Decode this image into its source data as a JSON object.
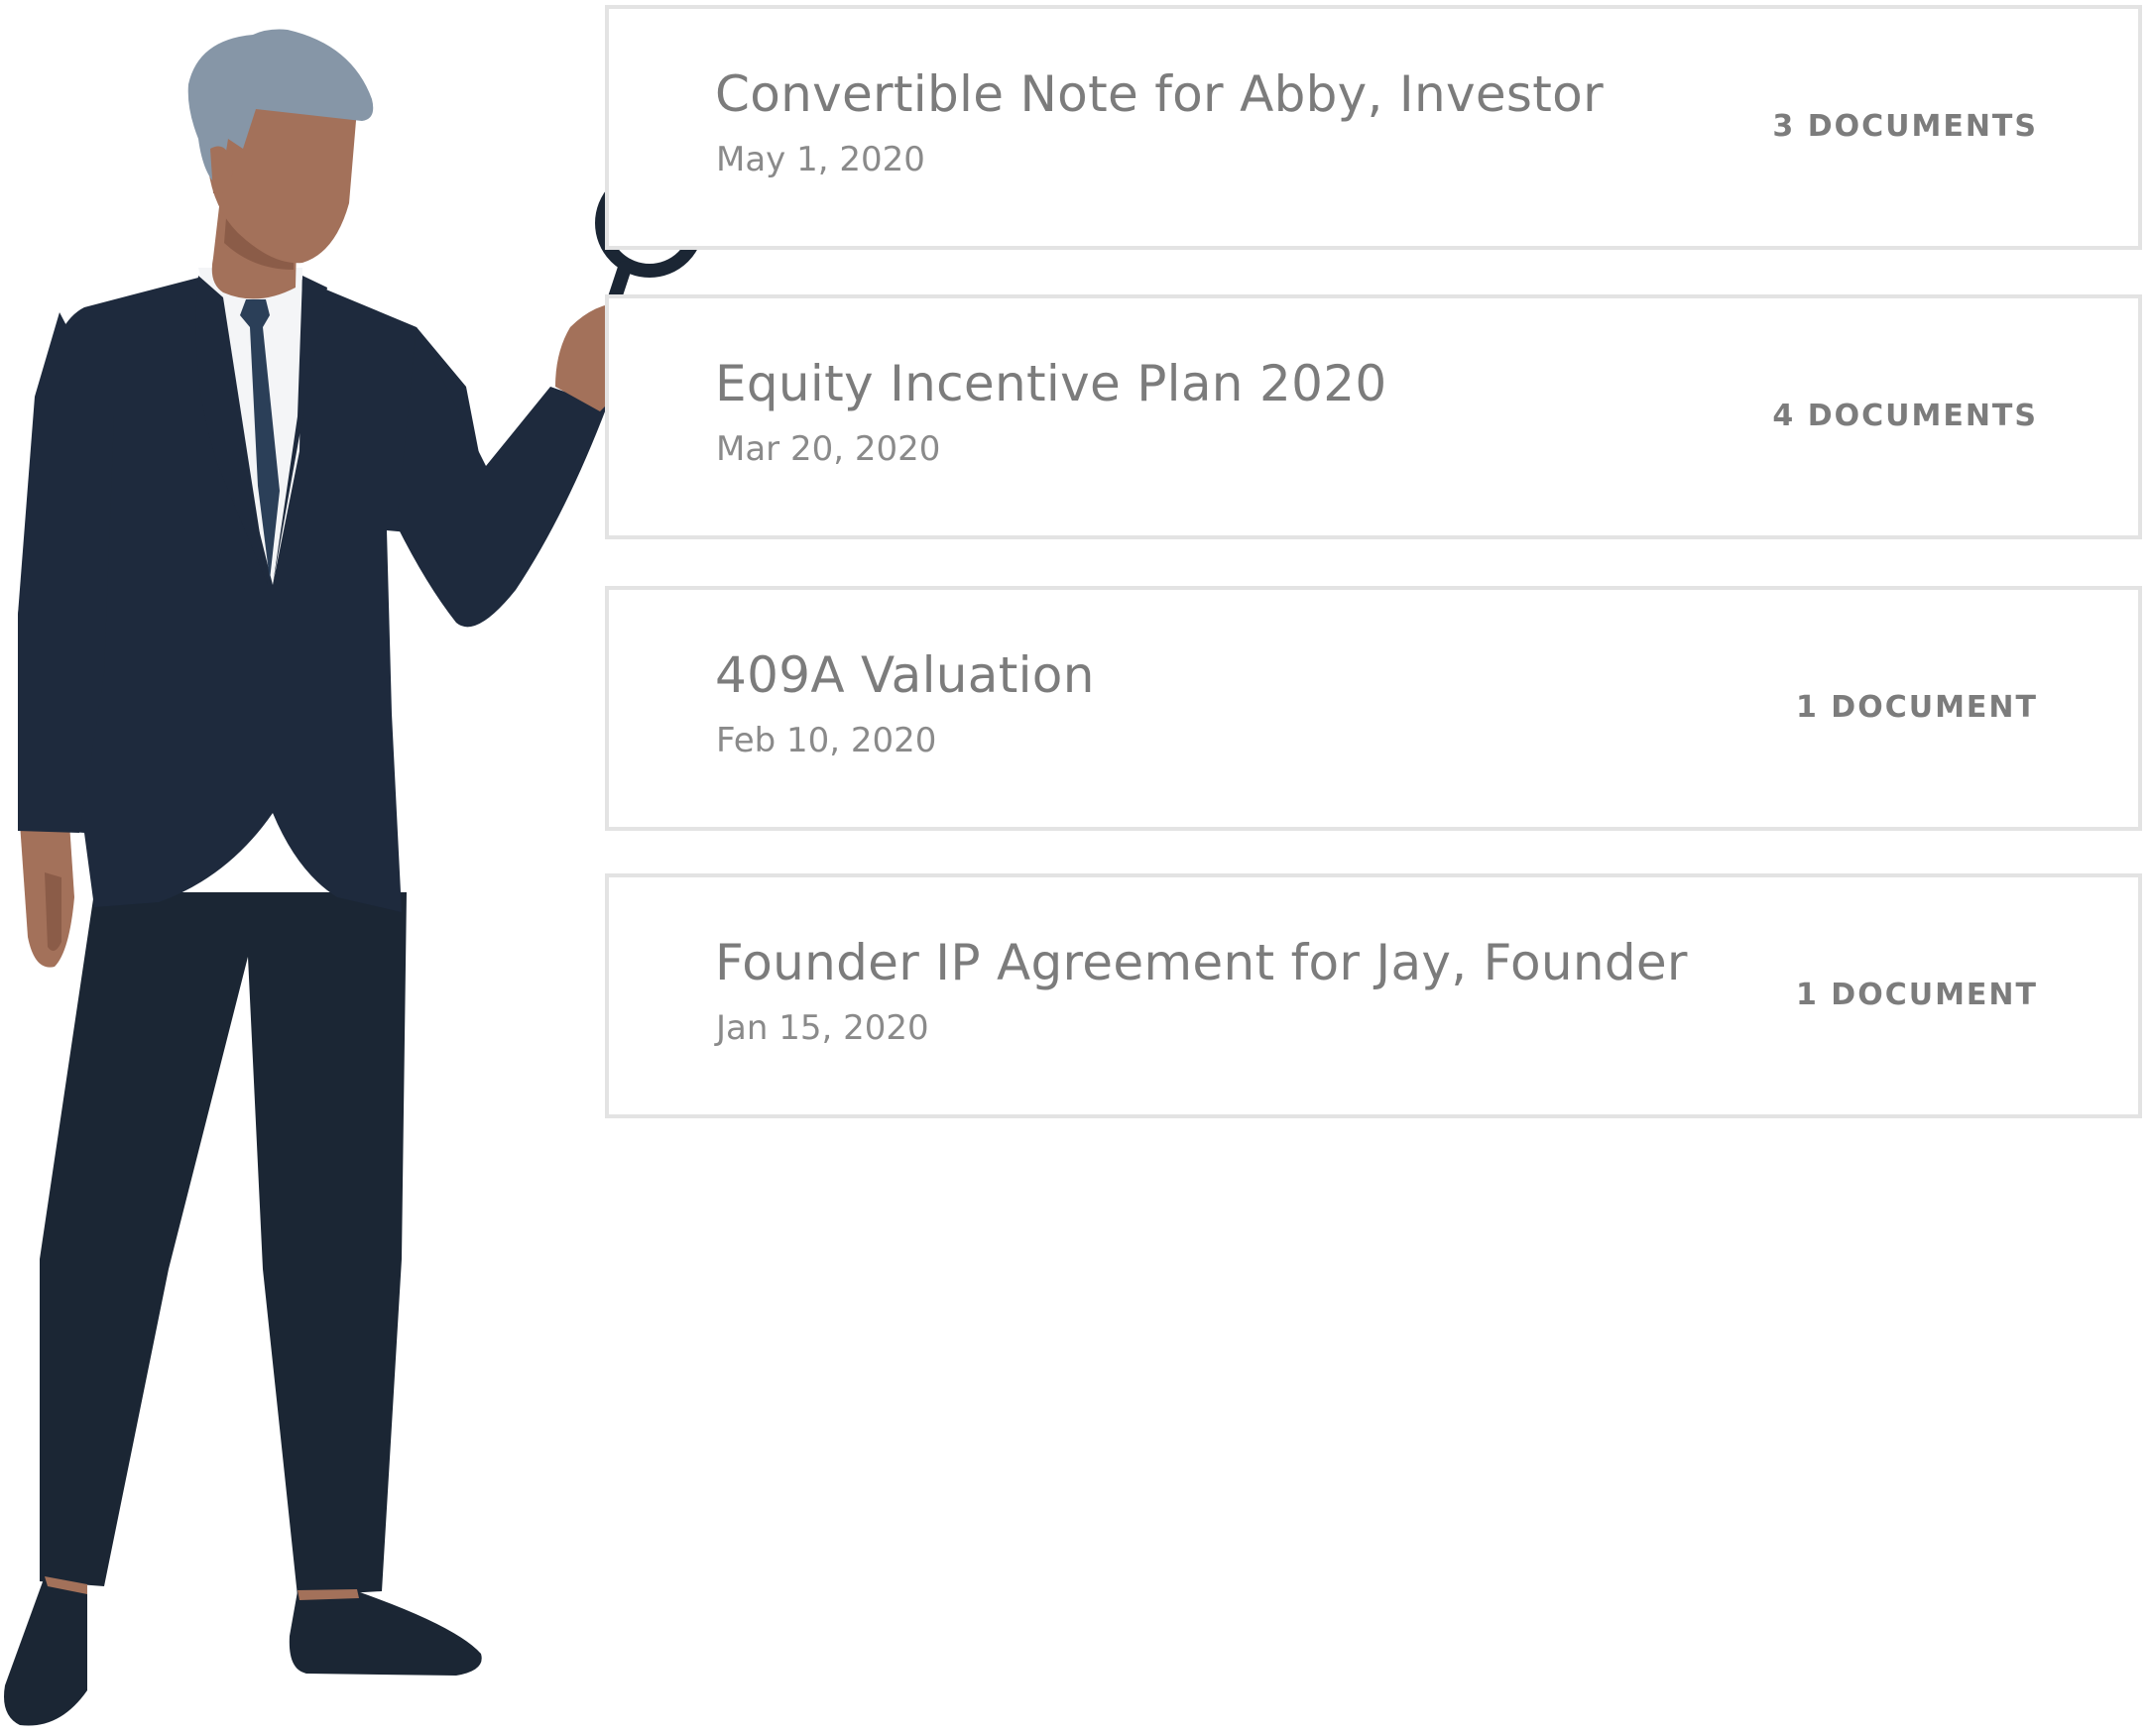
{
  "documents": [
    {
      "title": "Convertible Note for Abby, Investor",
      "date": "May 1, 2020",
      "count": "3 DOCUMENTS"
    },
    {
      "title": "Equity Incentive Plan 2020",
      "date": "Mar 20, 2020",
      "count": "4 DOCUMENTS"
    },
    {
      "title": "409A Valuation",
      "date": "Feb 10, 2020",
      "count": "1 DOCUMENT"
    },
    {
      "title": "Founder IP Agreement for Jay, Founder",
      "date": "Jan 15, 2020",
      "count": "1 DOCUMENT"
    }
  ],
  "illustration": {
    "subject": "person-with-magnifying-glass",
    "colors": {
      "suit": "#1e2a3d",
      "pants": "#1b2634",
      "skin": "#a3715a",
      "hair": "#8696a7",
      "shirt": "#f4f5f7",
      "tie": "#2b3f58",
      "shoe": "#1b2634"
    }
  },
  "colors": {
    "card_border": "#e3e3e3",
    "title_text": "#7c7c7c",
    "date_text": "#8a8a8a"
  }
}
